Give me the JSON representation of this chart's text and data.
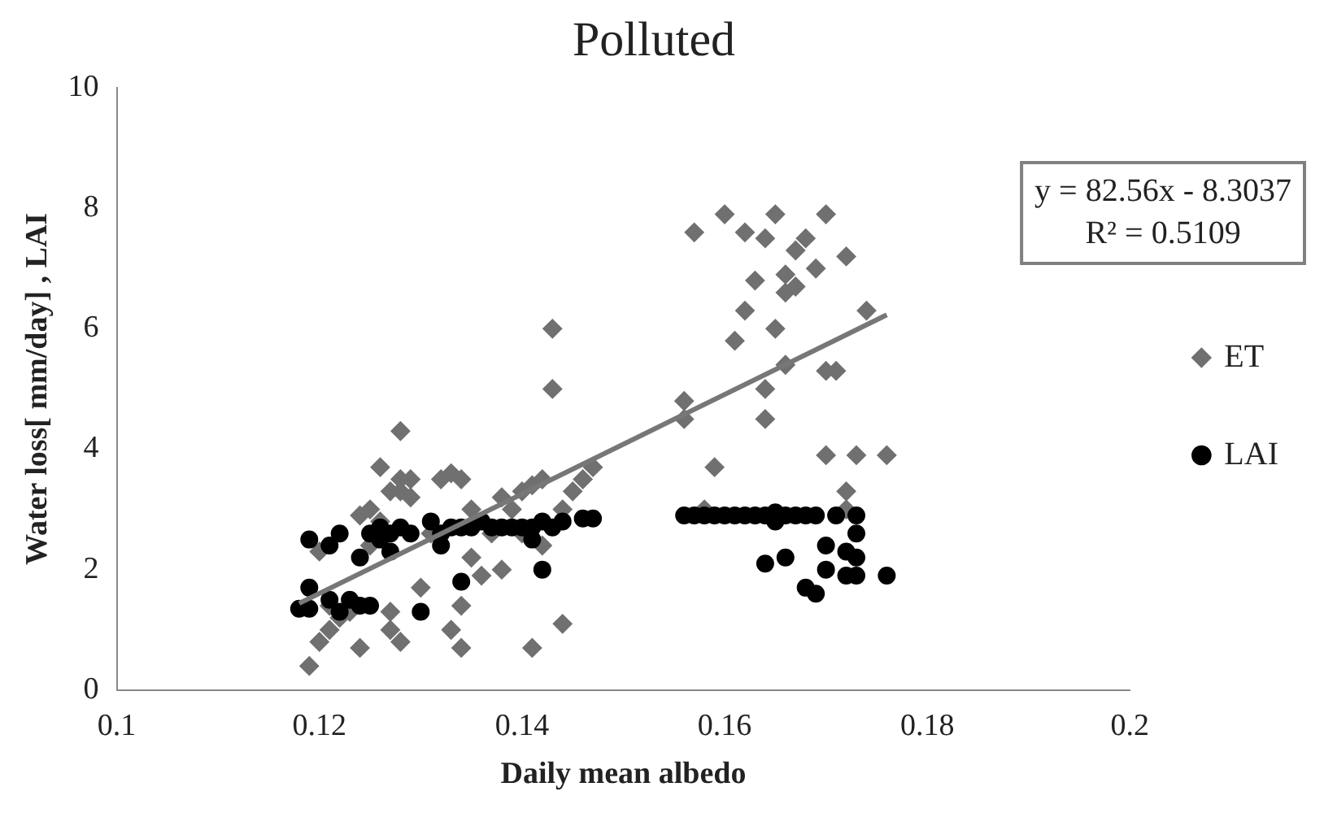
{
  "chart_data": {
    "type": "scatter",
    "title": "Polluted",
    "xlabel": "Daily mean albedo",
    "ylabel": "Water loss[ mm/day] , LAI",
    "xlim": [
      0.1,
      0.2
    ],
    "xticks": [
      0.1,
      0.12,
      0.14,
      0.16,
      0.18,
      0.2
    ],
    "ylim": [
      0,
      10
    ],
    "yticks": [
      0,
      2,
      4,
      6,
      8,
      10
    ],
    "grid": false,
    "legend": "right",
    "annotations": [
      "y = 82.56x - 8.3037",
      "R² = 0.5109"
    ],
    "series": [
      {
        "name": "ET",
        "color": "#707070",
        "marker": "diamond",
        "x": [
          0.119,
          0.12,
          0.121,
          0.121,
          0.122,
          0.12,
          0.122,
          0.123,
          0.124,
          0.124,
          0.125,
          0.125,
          0.126,
          0.126,
          0.127,
          0.127,
          0.127,
          0.128,
          0.128,
          0.128,
          0.128,
          0.129,
          0.129,
          0.13,
          0.131,
          0.132,
          0.133,
          0.133,
          0.134,
          0.134,
          0.134,
          0.135,
          0.135,
          0.136,
          0.137,
          0.138,
          0.138,
          0.139,
          0.14,
          0.14,
          0.141,
          0.141,
          0.142,
          0.142,
          0.143,
          0.143,
          0.144,
          0.144,
          0.145,
          0.146,
          0.147,
          0.156,
          0.156,
          0.157,
          0.158,
          0.159,
          0.16,
          0.161,
          0.162,
          0.162,
          0.163,
          0.164,
          0.164,
          0.164,
          0.165,
          0.165,
          0.166,
          0.166,
          0.166,
          0.167,
          0.167,
          0.168,
          0.169,
          0.17,
          0.17,
          0.17,
          0.171,
          0.172,
          0.172,
          0.172,
          0.173,
          0.174,
          0.176
        ],
        "values": [
          0.4,
          0.8,
          1.0,
          1.4,
          1.2,
          2.3,
          null,
          1.3,
          0.7,
          2.9,
          3.0,
          2.4,
          3.7,
          2.8,
          1.3,
          3.3,
          1.0,
          4.3,
          3.5,
          3.3,
          0.8,
          3.5,
          3.2,
          1.7,
          2.6,
          3.5,
          3.6,
          1.0,
          3.5,
          1.4,
          0.7,
          3.0,
          2.2,
          1.9,
          2.6,
          3.2,
          2.0,
          3.0,
          3.3,
          2.6,
          3.4,
          0.7,
          2.4,
          3.5,
          6.0,
          5.0,
          3.0,
          1.1,
          3.3,
          3.5,
          3.7,
          4.8,
          4.5,
          7.6,
          3.0,
          3.7,
          7.9,
          5.8,
          7.6,
          6.3,
          6.8,
          5.0,
          7.5,
          4.5,
          7.9,
          6.0,
          6.6,
          6.9,
          5.4,
          6.7,
          7.3,
          7.5,
          7.0,
          7.9,
          3.9,
          5.3,
          5.3,
          3.3,
          7.2,
          3.0,
          3.9,
          6.3,
          3.9
        ]
      },
      {
        "name": "LAI",
        "color": "#000000",
        "marker": "circle",
        "x": [
          0.118,
          0.119,
          0.119,
          0.119,
          0.121,
          0.121,
          0.122,
          0.122,
          0.123,
          0.124,
          0.124,
          0.125,
          0.125,
          0.126,
          0.126,
          0.127,
          0.127,
          0.128,
          0.129,
          0.13,
          0.131,
          0.132,
          0.132,
          0.133,
          0.134,
          0.134,
          0.135,
          0.136,
          0.137,
          0.138,
          0.139,
          0.14,
          0.141,
          0.141,
          0.142,
          0.142,
          0.143,
          0.144,
          0.146,
          0.147,
          0.156,
          0.157,
          0.158,
          0.159,
          0.16,
          0.161,
          0.162,
          0.163,
          0.164,
          0.164,
          0.165,
          0.165,
          0.166,
          0.166,
          0.167,
          0.168,
          0.168,
          0.169,
          0.169,
          0.17,
          0.17,
          0.171,
          0.172,
          0.172,
          0.173,
          0.173,
          0.173,
          0.173,
          0.176
        ],
        "values": [
          1.35,
          1.35,
          1.7,
          2.5,
          1.5,
          2.4,
          2.6,
          1.3,
          1.5,
          1.4,
          2.2,
          2.6,
          1.4,
          2.7,
          2.5,
          2.6,
          2.3,
          2.7,
          2.6,
          1.3,
          2.8,
          2.6,
          2.4,
          2.7,
          2.7,
          1.8,
          2.7,
          2.8,
          2.7,
          2.7,
          2.7,
          2.7,
          2.7,
          2.5,
          2.8,
          2.0,
          2.7,
          2.8,
          2.85,
          2.85,
          2.9,
          2.9,
          2.9,
          2.9,
          2.9,
          2.9,
          2.9,
          2.9,
          2.9,
          2.1,
          2.95,
          2.8,
          2.9,
          2.2,
          2.9,
          2.9,
          1.7,
          2.9,
          1.6,
          2.0,
          2.4,
          2.9,
          2.3,
          1.9,
          2.9,
          2.6,
          1.9,
          2.2,
          1.9
        ]
      },
      {
        "type": "line",
        "color": "#777777",
        "marker": "none",
        "line_style": "solid",
        "x": [
          0.118,
          0.176
        ],
        "values": [
          1.44,
          6.23
        ]
      }
    ]
  }
}
